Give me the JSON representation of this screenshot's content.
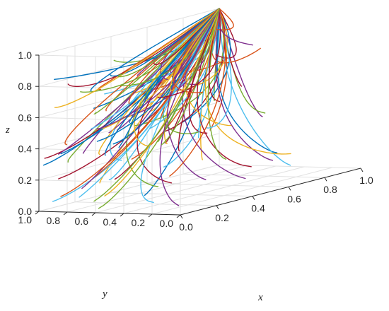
{
  "chart_data": {
    "type": "line",
    "title": "",
    "xlabel": "x",
    "ylabel": "y",
    "zlabel": "z",
    "xlim": [
      0,
      1
    ],
    "ylim": [
      0,
      1
    ],
    "zlim": [
      0,
      1
    ],
    "grid": true,
    "box": "open-back-panes",
    "x_ticks": [
      "0.0",
      "0.2",
      "0.4",
      "0.6",
      "0.8",
      "1.0"
    ],
    "y_ticks": [
      "0.0",
      "0.2",
      "0.4",
      "0.6",
      "0.8",
      "1.0"
    ],
    "z_ticks": [
      "0.0",
      "0.2",
      "0.4",
      "0.6",
      "0.8",
      "1.0"
    ],
    "convergence_point": {
      "x": 1.0,
      "y": 1.0,
      "z": 1.0
    },
    "series_count": 110,
    "colors": [
      "#0072BD",
      "#D95319",
      "#EDB120",
      "#7E2F8E",
      "#77AC30",
      "#4DBEEE",
      "#A2142F"
    ]
  }
}
